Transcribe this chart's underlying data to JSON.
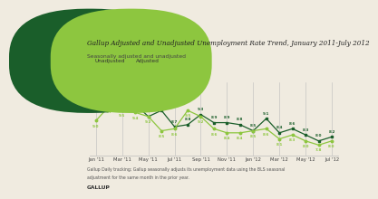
{
  "title": "Gallup Adjusted and Unadjusted Unemployment Rate Trend, January 2011-July 2012",
  "subtitle": "Seasonally adjusted and unadjusted",
  "x_labels": [
    "Jan '11",
    "Mar '11",
    "May '11",
    "Jul '11",
    "Sep '11",
    "Nov '11",
    "Jan '12",
    "Mar '12",
    "May '12",
    "Jul '12"
  ],
  "x_tick_positions": [
    0,
    2,
    4,
    6,
    8,
    10,
    12,
    14,
    16,
    18
  ],
  "unadjusted_x": [
    0,
    1,
    2,
    3,
    4,
    5,
    6,
    7,
    8,
    9,
    10,
    11,
    12,
    13,
    14,
    15,
    16,
    17,
    18
  ],
  "unadjusted_y": [
    9.9,
    10.3,
    9.9,
    9.8,
    9.2,
    9.5,
    8.7,
    8.8,
    9.3,
    8.9,
    8.9,
    8.8,
    8.5,
    9.1,
    8.4,
    8.6,
    8.3,
    8.0,
    8.2
  ],
  "adjusted_y": [
    9.0,
    9.7,
    9.5,
    9.4,
    9.2,
    8.5,
    8.6,
    9.5,
    9.2,
    8.6,
    8.4,
    8.4,
    8.5,
    8.6,
    8.1,
    8.3,
    8.0,
    7.8,
    8.0
  ],
  "unadjusted_color": "#1a5e2a",
  "adjusted_color": "#8dc63f",
  "bg_color": "#f0ebe0",
  "grid_color": "#bbbbbb",
  "legend_unadjusted": "Unadjusted",
  "legend_adjusted": "Adjusted",
  "footer_line1": "Gallup Daily tracking; Gallup seasonally adjusts its unemployment data using the BLS seasonal",
  "footer_line2": "adjustment for the same month in the prior year.",
  "gallup_label": "GALLUP",
  "ylim": [
    7.3,
    10.9
  ],
  "xlim": [
    -0.5,
    18.5
  ],
  "title_fontsize": 5.2,
  "subtitle_fontsize": 4.3,
  "tick_fontsize": 3.8,
  "label_fontsize": 3.0,
  "legend_fontsize": 4.2,
  "footer_fontsize": 3.3
}
